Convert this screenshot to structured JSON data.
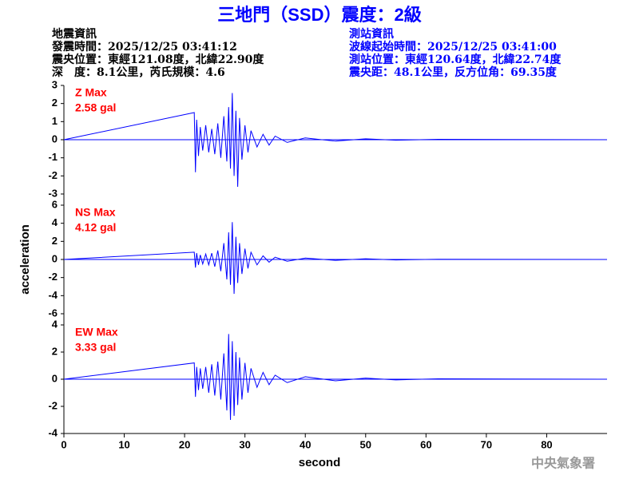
{
  "title": "三地門（SSD）震度：2級",
  "info_left": [
    "地震資訊",
    "發震時間：2025/12/25 03:41:12",
    "震央位置：東經121.08度，北緯22.90度",
    "深　度：8.1公里，芮氏規模：4.6"
  ],
  "info_right": [
    "測站資訊",
    "波線起始時間：2025/12/25 03:41:00",
    "測站位置：東經120.64度，北緯22.74度",
    "震央距：48.1公里，反方位角：69.35度"
  ],
  "watermark": "中央氣象署",
  "chart_data": [
    {
      "type": "line",
      "name": "Z Max",
      "max_label": "2.58 gal",
      "color": "#0000ff",
      "label_color": "#ff0000",
      "xlim": [
        0,
        90
      ],
      "ylim": [
        -3,
        3
      ],
      "yticks": [
        -3,
        -2,
        -1,
        0,
        1,
        2,
        3
      ],
      "x": [
        0,
        21.6,
        21.8,
        22.0,
        22.3,
        22.6,
        23,
        23.5,
        24,
        24.5,
        25,
        25.5,
        26,
        26.5,
        27,
        27.3,
        27.6,
        27.9,
        28.2,
        28.5,
        28.8,
        29.1,
        29.5,
        30,
        30.5,
        31,
        32,
        33,
        34,
        35,
        37,
        40,
        45,
        50,
        55,
        62,
        89
      ],
      "values": [
        0,
        1.5,
        -1.8,
        1.1,
        -0.9,
        0.7,
        -0.6,
        0.8,
        -0.7,
        0.6,
        -0.8,
        0.9,
        -1.0,
        1.3,
        -1.2,
        1.8,
        -1.6,
        2.58,
        -2.0,
        1.6,
        -2.6,
        1.2,
        -1.1,
        0.8,
        -0.7,
        0.5,
        -0.4,
        0.3,
        -0.3,
        0.2,
        -0.15,
        0.1,
        -0.08,
        0.05,
        -0.03,
        0.02,
        0
      ]
    },
    {
      "type": "line",
      "name": "NS Max",
      "max_label": "4.12 gal",
      "color": "#0000ff",
      "label_color": "#ff0000",
      "ylabel": "acceleration",
      "xlim": [
        0,
        90
      ],
      "ylim": [
        -6,
        6
      ],
      "yticks": [
        -6,
        -4,
        -2,
        0,
        2,
        4,
        6
      ],
      "x": [
        0,
        21.6,
        21.8,
        22.0,
        22.3,
        22.6,
        23,
        23.5,
        24,
        24.5,
        25,
        25.5,
        26,
        26.5,
        27,
        27.3,
        27.6,
        27.9,
        28.2,
        28.5,
        28.8,
        29.1,
        29.5,
        30,
        30.5,
        31,
        32,
        33,
        34,
        35,
        37,
        40,
        45,
        50,
        55,
        62,
        89
      ],
      "values": [
        0,
        0.8,
        -0.9,
        0.7,
        -0.6,
        0.5,
        -0.5,
        0.6,
        -0.6,
        0.7,
        -0.8,
        1.0,
        -1.3,
        1.8,
        -2.2,
        3.0,
        -2.8,
        4.12,
        -3.8,
        2.5,
        -2.6,
        1.8,
        -1.6,
        1.2,
        -1.0,
        0.8,
        -0.6,
        0.4,
        -0.3,
        0.25,
        -0.2,
        0.15,
        -0.1,
        0.08,
        -0.05,
        0.02,
        0
      ]
    },
    {
      "type": "line",
      "name": "EW Max",
      "max_label": "3.33 gal",
      "color": "#0000ff",
      "label_color": "#ff0000",
      "xlabel": "second",
      "xlim": [
        0,
        90
      ],
      "xticks": [
        0,
        10,
        20,
        30,
        40,
        50,
        60,
        70,
        80
      ],
      "ylim": [
        -4,
        4
      ],
      "yticks": [
        -4,
        -2,
        0,
        2,
        4
      ],
      "x": [
        0,
        21.6,
        21.8,
        22.0,
        22.3,
        22.6,
        23,
        23.5,
        24,
        24.5,
        25,
        25.5,
        26,
        26.5,
        27,
        27.3,
        27.6,
        27.9,
        28.2,
        28.5,
        28.8,
        29.1,
        29.5,
        30,
        30.5,
        31,
        32,
        33,
        34,
        35,
        37,
        40,
        45,
        50,
        55,
        62,
        89
      ],
      "values": [
        0,
        1.2,
        -1.3,
        0.9,
        -0.8,
        0.8,
        -0.7,
        0.9,
        -1.0,
        1.1,
        -1.2,
        1.3,
        -1.5,
        1.9,
        -2.3,
        3.33,
        -3.0,
        2.8,
        -2.7,
        2.0,
        -1.9,
        1.6,
        -1.5,
        1.2,
        -1.0,
        0.8,
        -0.6,
        0.5,
        -0.4,
        0.3,
        -0.25,
        0.18,
        -0.12,
        0.08,
        -0.05,
        0.03,
        0
      ]
    }
  ]
}
